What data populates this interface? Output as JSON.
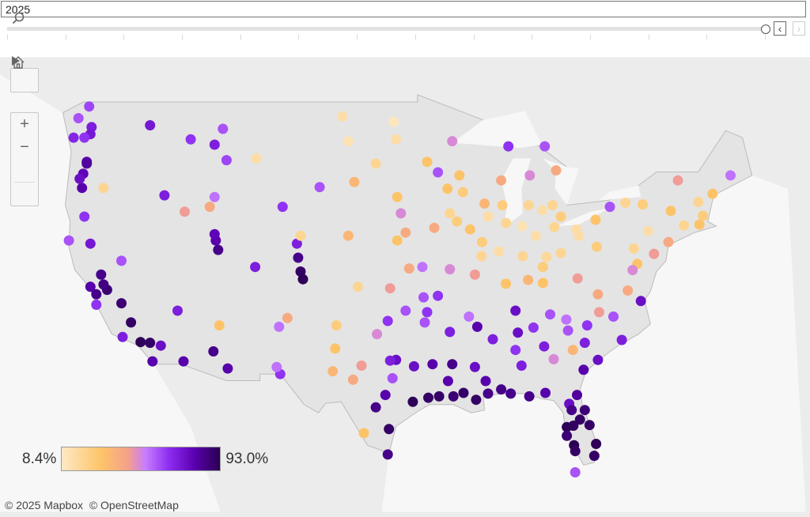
{
  "filter": {
    "year": "2025"
  },
  "slider": {
    "position": 1.0,
    "tick_count": 14,
    "prev_label": "‹",
    "next_label": "›",
    "next_disabled": true
  },
  "map_tools": {
    "search_icon": "magnifier-icon",
    "zoom_in": "+",
    "zoom_out": "−",
    "home_icon": "home-icon",
    "pan_icon": "play-triangle-icon"
  },
  "legend": {
    "min_label": "8.4%",
    "max_label": "93.0%",
    "min": 8.4,
    "max": 93.0,
    "colors": [
      "#fde9c4",
      "#fdc468",
      "#f5a08a",
      "#c77dff",
      "#8c2cf0",
      "#5a00b0",
      "#2a0050"
    ]
  },
  "attribution": {
    "mapbox": "© 2025 Mapbox",
    "osm": "© OpenStreetMap"
  },
  "point_fields": [
    "longitude",
    "latitude",
    "value_percent"
  ],
  "points": [
    [
      -122.3,
      47.6,
      70
    ],
    [
      -122.4,
      47.2,
      72
    ],
    [
      -122.9,
      47.0,
      65
    ],
    [
      -122.5,
      48.75,
      62
    ],
    [
      -123.4,
      48.1,
      60
    ],
    [
      -123.8,
      47.0,
      68
    ],
    [
      -122.7,
      45.6,
      80
    ],
    [
      -122.7,
      45.5,
      82
    ],
    [
      -123.0,
      44.9,
      78
    ],
    [
      -123.1,
      44.05,
      80
    ],
    [
      -123.3,
      44.6,
      75
    ],
    [
      -121.3,
      44.05,
      20
    ],
    [
      -122.9,
      42.3,
      65
    ],
    [
      -124.2,
      40.8,
      60
    ],
    [
      -122.4,
      40.6,
      72
    ],
    [
      -121.5,
      38.6,
      85
    ],
    [
      -122.4,
      37.8,
      80
    ],
    [
      -121.9,
      37.3,
      85
    ],
    [
      -119.8,
      36.7,
      88
    ],
    [
      -119.0,
      35.4,
      90
    ],
    [
      -118.2,
      34.05,
      92
    ],
    [
      -117.2,
      32.7,
      80
    ],
    [
      -119.7,
      34.4,
      70
    ],
    [
      -117.4,
      34.0,
      90
    ],
    [
      -116.5,
      33.8,
      75
    ],
    [
      -121.0,
      37.6,
      88
    ],
    [
      -121.3,
      37.95,
      86
    ],
    [
      -121.9,
      36.6,
      65
    ],
    [
      -119.8,
      39.5,
      60
    ],
    [
      -115.1,
      36.2,
      70
    ],
    [
      -112.1,
      33.4,
      85
    ],
    [
      -110.9,
      32.2,
      80
    ],
    [
      -111.6,
      35.2,
      30
    ],
    [
      -114.6,
      32.7,
      80
    ],
    [
      -106.6,
      35.1,
      55
    ],
    [
      -105.9,
      35.7,
      40
    ],
    [
      -106.5,
      31.8,
      65
    ],
    [
      -106.8,
      32.3,
      55
    ],
    [
      -116.2,
      43.6,
      70
    ],
    [
      -117.4,
      47.7,
      72
    ],
    [
      -114.0,
      46.9,
      65
    ],
    [
      -112.0,
      46.6,
      70
    ],
    [
      -108.5,
      45.8,
      15
    ],
    [
      -111.3,
      47.5,
      60
    ],
    [
      -111.0,
      45.7,
      62
    ],
    [
      -111.9,
      40.8,
      80
    ],
    [
      -111.7,
      40.2,
      85
    ],
    [
      -112.0,
      41.2,
      78
    ],
    [
      -105.0,
      39.7,
      85
    ],
    [
      -104.8,
      38.8,
      90
    ],
    [
      -104.6,
      38.3,
      92
    ],
    [
      -105.1,
      40.6,
      70
    ],
    [
      -108.6,
      39.1,
      70
    ],
    [
      -104.8,
      41.1,
      20
    ],
    [
      -106.3,
      42.9,
      65
    ],
    [
      -103.2,
      44.1,
      60
    ],
    [
      -112.0,
      43.5,
      55
    ],
    [
      -112.4,
      42.9,
      40
    ],
    [
      -114.5,
      42.6,
      45
    ],
    [
      -96.8,
      46.9,
      15
    ],
    [
      -100.8,
      46.8,
      12
    ],
    [
      -97.0,
      47.9,
      10
    ],
    [
      -101.3,
      48.2,
      15
    ],
    [
      -96.7,
      43.5,
      30
    ],
    [
      -98.5,
      45.5,
      20
    ],
    [
      -100.3,
      44.4,
      35
    ],
    [
      -96.0,
      41.3,
      40
    ],
    [
      -96.7,
      40.8,
      30
    ],
    [
      -100.8,
      41.1,
      35
    ],
    [
      -97.3,
      37.7,
      45
    ],
    [
      -95.7,
      39.0,
      40
    ],
    [
      -94.6,
      39.1,
      55
    ],
    [
      -100.0,
      37.8,
      20
    ],
    [
      -96.0,
      36.2,
      60
    ],
    [
      -97.5,
      35.5,
      65
    ],
    [
      -98.4,
      34.6,
      50
    ],
    [
      -101.8,
      35.2,
      25
    ],
    [
      -101.9,
      33.6,
      30
    ],
    [
      -102.1,
      32.0,
      35
    ],
    [
      -96.8,
      32.8,
      75
    ],
    [
      -97.3,
      32.75,
      70
    ],
    [
      -97.7,
      30.3,
      80
    ],
    [
      -98.5,
      29.4,
      85
    ],
    [
      -95.4,
      29.8,
      92
    ],
    [
      -97.4,
      27.8,
      90
    ],
    [
      -97.5,
      25.9,
      85
    ],
    [
      -99.5,
      27.5,
      30
    ],
    [
      -97.1,
      31.5,
      60
    ],
    [
      -95.3,
      32.35,
      75
    ],
    [
      -94.1,
      30.1,
      90
    ],
    [
      -99.7,
      32.4,
      45
    ],
    [
      -100.4,
      31.4,
      40
    ],
    [
      -93.3,
      44.98,
      60
    ],
    [
      -94.2,
      45.6,
      30
    ],
    [
      -92.1,
      46.8,
      50
    ],
    [
      -92.5,
      44.0,
      30
    ],
    [
      -93.6,
      41.6,
      40
    ],
    [
      -91.7,
      42.0,
      25
    ],
    [
      -96.4,
      42.5,
      50
    ],
    [
      -92.3,
      42.5,
      20
    ],
    [
      -90.6,
      41.5,
      30
    ],
    [
      -89.4,
      43.1,
      35
    ],
    [
      -87.9,
      43.0,
      25
    ],
    [
      -88.0,
      44.5,
      40
    ],
    [
      -91.5,
      44.8,
      30
    ],
    [
      -91.2,
      43.8,
      25
    ],
    [
      -87.6,
      41.9,
      20
    ],
    [
      -89.1,
      42.3,
      15
    ],
    [
      -89.6,
      40.7,
      25
    ],
    [
      -89.65,
      39.8,
      20
    ],
    [
      -88.2,
      40.1,
      15
    ],
    [
      -90.2,
      38.6,
      45
    ],
    [
      -92.3,
      38.95,
      50
    ],
    [
      -93.3,
      37.2,
      65
    ],
    [
      -94.5,
      37.1,
      60
    ],
    [
      -86.2,
      39.8,
      20
    ],
    [
      -85.1,
      41.1,
      15
    ],
    [
      -87.6,
      38.0,
      30
    ],
    [
      -86.25,
      41.7,
      12
    ],
    [
      -83.0,
      42.3,
      25
    ],
    [
      -85.7,
      43.0,
      20
    ],
    [
      -84.55,
      42.7,
      15
    ],
    [
      -83.7,
      43.0,
      20
    ],
    [
      -85.6,
      44.8,
      50
    ],
    [
      -87.4,
      46.5,
      65
    ],
    [
      -84.35,
      46.5,
      60
    ],
    [
      -83.4,
      45.1,
      40
    ],
    [
      -83.0,
      40.0,
      20
    ],
    [
      -81.7,
      41.5,
      15
    ],
    [
      -84.5,
      39.1,
      25
    ],
    [
      -83.55,
      41.65,
      20
    ],
    [
      -84.2,
      39.75,
      18
    ],
    [
      -81.5,
      41.1,
      15
    ],
    [
      -80.0,
      40.4,
      25
    ],
    [
      -75.2,
      39.95,
      45
    ],
    [
      -76.9,
      40.3,
      20
    ],
    [
      -75.7,
      41.4,
      15
    ],
    [
      -80.1,
      42.1,
      30
    ],
    [
      -78.9,
      42.9,
      60
    ],
    [
      -77.6,
      43.15,
      20
    ],
    [
      -76.15,
      43.05,
      25
    ],
    [
      -73.8,
      42.65,
      30
    ],
    [
      -74.0,
      40.7,
      40
    ],
    [
      -71.1,
      42.35,
      25
    ],
    [
      -72.7,
      41.75,
      20
    ],
    [
      -71.4,
      41.8,
      30
    ],
    [
      -73.2,
      44.5,
      45
    ],
    [
      -70.3,
      43.7,
      30
    ],
    [
      -68.8,
      44.8,
      55
    ],
    [
      -71.5,
      43.2,
      20
    ],
    [
      -76.6,
      39.3,
      30
    ],
    [
      -77.0,
      38.9,
      50
    ],
    [
      -77.4,
      37.55,
      40
    ],
    [
      -76.3,
      36.85,
      75
    ],
    [
      -78.6,
      35.8,
      60
    ],
    [
      -80.8,
      35.2,
      65
    ],
    [
      -79.8,
      36.1,
      45
    ],
    [
      -77.9,
      34.2,
      70
    ],
    [
      -82.55,
      35.6,
      55
    ],
    [
      -83.9,
      35.95,
      60
    ],
    [
      -86.8,
      36.2,
      75
    ],
    [
      -90.0,
      35.1,
      80
    ],
    [
      -85.3,
      35.05,
      65
    ],
    [
      -85.75,
      38.25,
      35
    ],
    [
      -84.5,
      38.05,
      30
    ],
    [
      -81.6,
      38.35,
      45
    ],
    [
      -79.9,
      37.3,
      40
    ],
    [
      -81.0,
      34.0,
      70
    ],
    [
      -79.9,
      32.8,
      75
    ],
    [
      -82.4,
      34.85,
      60
    ],
    [
      -84.4,
      33.75,
      70
    ],
    [
      -83.6,
      32.85,
      50
    ],
    [
      -81.1,
      32.1,
      80
    ],
    [
      -82.0,
      33.5,
      35
    ],
    [
      -86.8,
      33.5,
      65
    ],
    [
      -86.3,
      32.4,
      70
    ],
    [
      -88.0,
      30.7,
      85
    ],
    [
      -86.6,
      34.7,
      75
    ],
    [
      -90.2,
      32.3,
      75
    ],
    [
      -89.3,
      31.3,
      80
    ],
    [
      -88.7,
      34.25,
      70
    ],
    [
      -92.3,
      34.75,
      70
    ],
    [
      -94.4,
      35.4,
      60
    ],
    [
      -94.2,
      36.1,
      65
    ],
    [
      -90.7,
      35.8,
      55
    ],
    [
      -93.75,
      32.5,
      80
    ],
    [
      -92.1,
      32.5,
      85
    ],
    [
      -92.45,
      31.3,
      80
    ],
    [
      -91.15,
      30.45,
      90
    ],
    [
      -90.1,
      29.95,
      90
    ],
    [
      -92.0,
      30.2,
      88
    ],
    [
      -93.2,
      30.2,
      90
    ],
    [
      -89.1,
      30.4,
      85
    ],
    [
      -87.2,
      30.4,
      85
    ],
    [
      -84.3,
      30.45,
      80
    ],
    [
      -85.65,
      30.2,
      85
    ],
    [
      -81.65,
      30.3,
      82
    ],
    [
      -82.3,
      29.65,
      75
    ],
    [
      -81.4,
      28.5,
      90
    ],
    [
      -82.5,
      27.95,
      92
    ],
    [
      -81.0,
      29.2,
      88
    ],
    [
      -80.6,
      28.1,
      90
    ],
    [
      -81.9,
      26.6,
      93
    ],
    [
      -80.05,
      26.7,
      92
    ],
    [
      -80.2,
      25.8,
      90
    ],
    [
      -81.8,
      26.15,
      90
    ],
    [
      -82.5,
      27.3,
      88
    ],
    [
      -81.95,
      28.05,
      91
    ],
    [
      -82.1,
      29.2,
      85
    ],
    [
      -81.8,
      24.55,
      60
    ]
  ]
}
